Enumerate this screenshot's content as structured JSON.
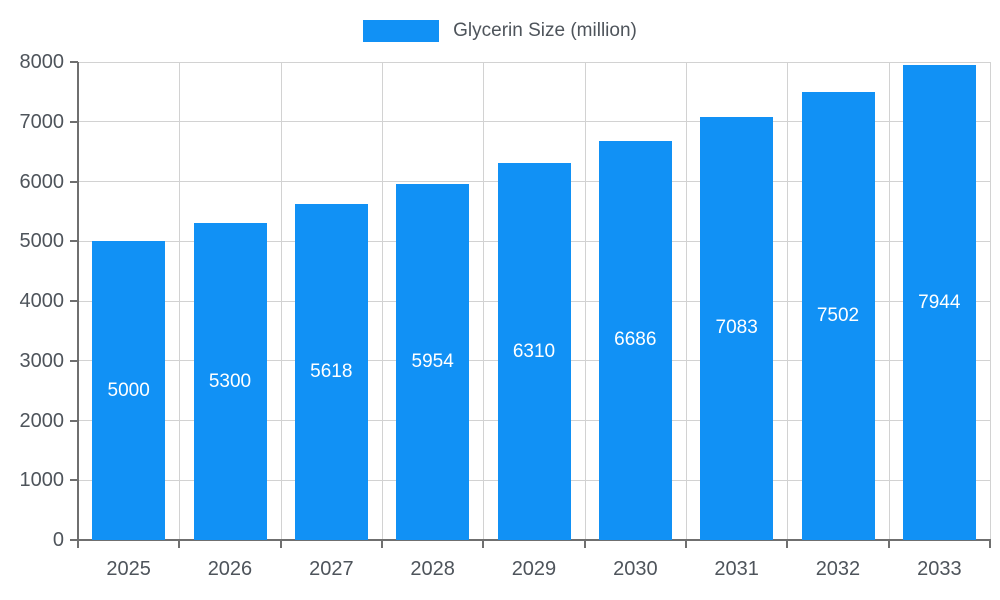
{
  "legend": {
    "label": "Glycerin Size (million)"
  },
  "chart_data": {
    "type": "bar",
    "title": "Glycerin Size (million)",
    "categories": [
      "2025",
      "2026",
      "2027",
      "2028",
      "2029",
      "2030",
      "2031",
      "2032",
      "2033"
    ],
    "values": [
      5000,
      5300,
      5618,
      5954,
      6310,
      6686,
      7083,
      7502,
      7944
    ],
    "series_name": "Glycerin Size (million)",
    "xlabel": "",
    "ylabel": "",
    "ylim": [
      0,
      8000
    ],
    "y_ticks": [
      0,
      1000,
      2000,
      3000,
      4000,
      5000,
      6000,
      7000,
      8000
    ],
    "grid": true,
    "legend_position": "top-center",
    "bar_color": "#1191f5",
    "value_label_color": "#ffffff",
    "tick_text_color": "#4e545b",
    "grid_color": "#d2d2d2",
    "axis_color": "#6f6f6f"
  }
}
